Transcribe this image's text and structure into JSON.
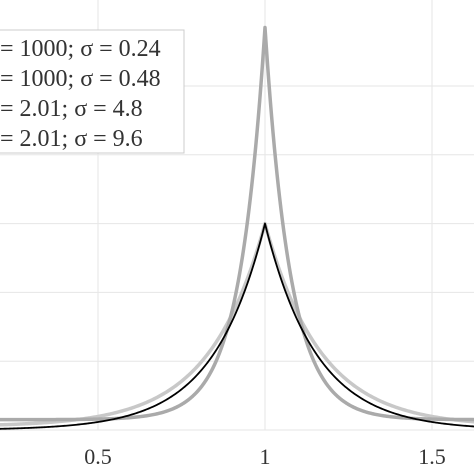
{
  "chart_data": {
    "type": "line",
    "title": "",
    "xlabel": "",
    "ylabel": "",
    "xlim": [
      0.0,
      1.6
    ],
    "ylim": [
      0.0,
      5.85
    ],
    "grid": true,
    "legend_position": "top-left",
    "x_ticks": [
      {
        "value": 0.5,
        "label": "0.5"
      },
      {
        "value": 1.0,
        "label": "1"
      },
      {
        "value": 1.5,
        "label": "1.5"
      }
    ],
    "y_grid_values": [
      1,
      2,
      3,
      4,
      5
    ],
    "series": [
      {
        "name": "= 1000; σ = 0.24",
        "color": "#c8c8c8",
        "stroke_width": 3.5,
        "peak": 3.0,
        "base": 0.05,
        "rate": 6.0
      },
      {
        "name": "= 1000; σ = 0.48",
        "color": "#111111",
        "stroke_width": 1.3,
        "peak": 5.85,
        "base": 0.15,
        "rate": 13.0
      },
      {
        "name": "= 2.01; σ = 4.8",
        "color": "#aaaaaa",
        "stroke_width": 3.5,
        "peak": 5.85,
        "base": 0.15,
        "rate": 13.0
      },
      {
        "name": "= 2.01; σ = 9.6",
        "color": "#000000",
        "stroke_width": 1.8,
        "peak": 3.0,
        "base": 0.0,
        "rate": 6.5
      }
    ],
    "legend_order": [
      1,
      1,
      2,
      3
    ]
  }
}
